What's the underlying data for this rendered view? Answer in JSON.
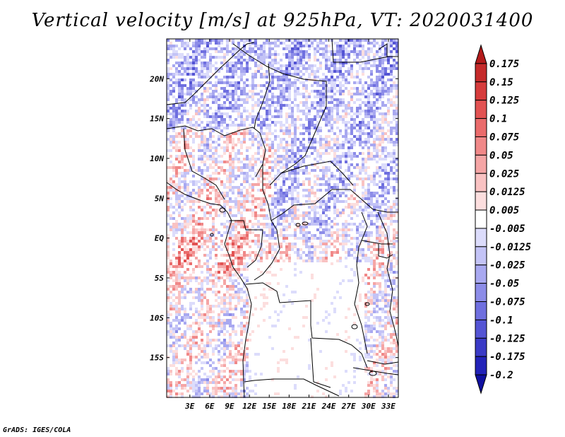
{
  "title": "Vertical velocity [m/s] at 925hPa, VT: 2020031400",
  "credit": "GrADS: IGES/COLA",
  "map": {
    "lon_range": [
      -0.5,
      34.5
    ],
    "lat_range": [
      -20,
      25
    ],
    "lon_ticks": [
      "3E",
      "6E",
      "9E",
      "12E",
      "15E",
      "18E",
      "21E",
      "24E",
      "27E",
      "30E",
      "33E"
    ],
    "lon_tick_values": [
      3,
      6,
      9,
      12,
      15,
      18,
      21,
      24,
      27,
      30,
      33
    ],
    "lat_ticks": [
      "20N",
      "15N",
      "10N",
      "5N",
      "EQ",
      "5S",
      "10S",
      "15S"
    ],
    "lat_tick_values": [
      20,
      15,
      10,
      5,
      0,
      -5,
      -10,
      -15
    ]
  },
  "colorbar": {
    "labels": [
      "0.175",
      "0.15",
      "0.125",
      "0.1",
      "0.075",
      "0.05",
      "0.025",
      "0.0125",
      "0.005",
      "-0.005",
      "-0.0125",
      "-0.025",
      "-0.05",
      "-0.075",
      "-0.1",
      "-0.125",
      "-0.175",
      "-0.2"
    ],
    "colors": [
      "#b31b1b",
      "#c52a2a",
      "#d63b3b",
      "#e25252",
      "#ea6b6b",
      "#f08888",
      "#f5a5a5",
      "#f9c2c2",
      "#fcdede",
      "#ffffff",
      "#dcdcfb",
      "#c3c3f6",
      "#a8a8f0",
      "#8c8ce8",
      "#6f6fdf",
      "#5454d4",
      "#3a3ac6",
      "#2222b8",
      "#1010a0"
    ]
  }
}
